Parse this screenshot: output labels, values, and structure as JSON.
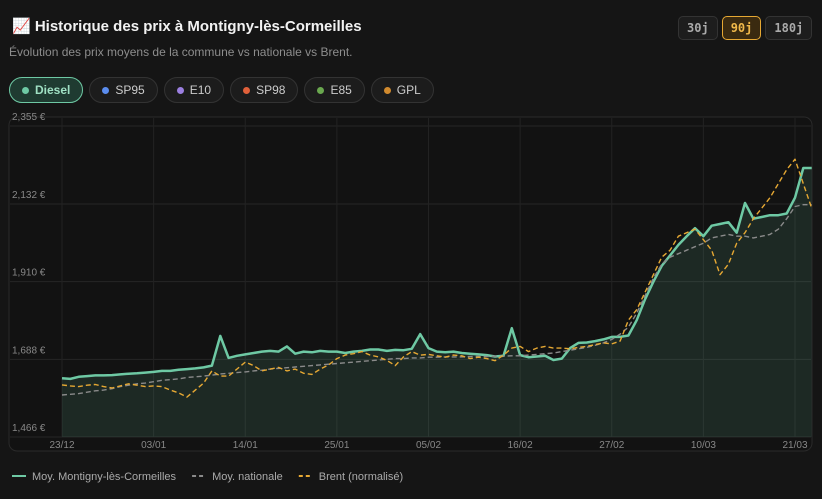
{
  "header": {
    "title": "📈 Historique des prix à Montigny-lès-Cormeilles",
    "subtitle": "Évolution des prix moyens de la commune vs nationale vs Brent."
  },
  "period_buttons": [
    {
      "label": "30j",
      "active": false
    },
    {
      "label": "90j",
      "active": true
    },
    {
      "label": "180j",
      "active": false
    }
  ],
  "fuel_tabs": [
    {
      "label": "Diesel",
      "color": "#6ec9a4",
      "active": true
    },
    {
      "label": "SP95",
      "color": "#5b8def",
      "active": false
    },
    {
      "label": "E10",
      "color": "#9b7fe0",
      "active": false
    },
    {
      "label": "SP98",
      "color": "#e0603a",
      "active": false
    },
    {
      "label": "E85",
      "color": "#6aa84f",
      "active": false
    },
    {
      "label": "GPL",
      "color": "#d08a2e",
      "active": false
    }
  ],
  "chart_data": {
    "type": "line",
    "categories": [
      "23/12",
      null,
      null,
      null,
      null,
      null,
      null,
      null,
      null,
      null,
      null,
      "03/01",
      null,
      null,
      null,
      null,
      null,
      null,
      null,
      null,
      null,
      null,
      "14/01",
      null,
      null,
      null,
      null,
      null,
      null,
      null,
      null,
      null,
      null,
      "25/01",
      null,
      null,
      null,
      null,
      null,
      null,
      null,
      null,
      null,
      null,
      "05/02",
      null,
      null,
      null,
      null,
      null,
      null,
      null,
      null,
      null,
      null,
      "16/02",
      null,
      null,
      null,
      null,
      null,
      null,
      null,
      null,
      null,
      null,
      "27/02",
      null,
      null,
      null,
      null,
      null,
      null,
      null,
      null,
      null,
      null,
      "10/03",
      null,
      null,
      null,
      null,
      null,
      null,
      null,
      null,
      null,
      null,
      "21/03",
      null,
      null
    ],
    "series": [
      {
        "name": "Moy. Montigny-lès-Cormeilles",
        "color": "#6ec9a4",
        "style": "solid",
        "fill": true,
        "values": [
          1.634,
          1.632,
          1.638,
          1.64,
          1.642,
          1.642,
          1.643,
          1.645,
          1.647,
          1.648,
          1.65,
          1.652,
          1.655,
          1.655,
          1.658,
          1.66,
          1.662,
          1.665,
          1.67,
          1.755,
          1.692,
          1.698,
          1.702,
          1.706,
          1.71,
          1.712,
          1.71,
          1.725,
          1.704,
          1.71,
          1.708,
          1.712,
          1.71,
          1.71,
          1.706,
          1.71,
          1.712,
          1.716,
          1.716,
          1.712,
          1.715,
          1.714,
          1.718,
          1.76,
          1.72,
          1.71,
          1.708,
          1.71,
          1.706,
          1.704,
          1.702,
          1.7,
          1.696,
          1.698,
          1.777,
          1.7,
          1.694,
          1.696,
          1.698,
          1.686,
          1.69,
          1.72,
          1.735,
          1.736,
          1.74,
          1.745,
          1.752,
          1.752,
          1.756,
          1.8,
          1.86,
          1.91,
          1.955,
          1.985,
          2.015,
          2.04,
          2.063,
          2.04,
          2.07,
          2.075,
          2.08,
          2.05,
          2.135,
          2.09,
          2.095,
          2.1,
          2.1,
          2.105,
          2.15,
          2.235,
          2.235
        ]
      },
      {
        "name": "Moy. nationale",
        "color": "#8a8a8a",
        "style": "dashed",
        "fill": false,
        "values": [
          1.586,
          1.588,
          1.59,
          1.594,
          1.598,
          1.6,
          1.604,
          1.61,
          1.614,
          1.618,
          1.62,
          1.624,
          1.628,
          1.63,
          1.632,
          1.636,
          1.638,
          1.64,
          1.643,
          1.646,
          1.648,
          1.65,
          1.652,
          1.655,
          1.657,
          1.66,
          1.662,
          1.664,
          1.666,
          1.668,
          1.67,
          1.672,
          1.674,
          1.676,
          1.678,
          1.68,
          1.682,
          1.684,
          1.686,
          1.688,
          1.69,
          1.69,
          1.692,
          1.692,
          1.694,
          1.694,
          1.695,
          1.695,
          1.695,
          1.696,
          1.696,
          1.696,
          1.697,
          1.697,
          1.698,
          1.698,
          1.7,
          1.702,
          1.704,
          1.706,
          1.71,
          1.714,
          1.718,
          1.722,
          1.728,
          1.735,
          1.745,
          1.76,
          1.78,
          1.82,
          1.87,
          1.92,
          1.96,
          1.98,
          1.99,
          2.0,
          2.01,
          2.02,
          2.035,
          2.04,
          2.045,
          2.04,
          2.04,
          2.035,
          2.04,
          2.045,
          2.06,
          2.09,
          2.125,
          2.13,
          2.13
        ]
      },
      {
        "name": "Brent (normalisé)",
        "color": "#e6a833",
        "style": "dashed",
        "fill": false,
        "values": [
          1.615,
          1.612,
          1.61,
          1.614,
          1.616,
          1.61,
          1.606,
          1.612,
          1.618,
          1.614,
          1.61,
          1.612,
          1.61,
          1.6,
          1.592,
          1.58,
          1.6,
          1.62,
          1.655,
          1.64,
          1.64,
          1.66,
          1.68,
          1.67,
          1.655,
          1.66,
          1.665,
          1.655,
          1.66,
          1.648,
          1.645,
          1.66,
          1.672,
          1.69,
          1.7,
          1.704,
          1.71,
          1.7,
          1.695,
          1.685,
          1.67,
          1.695,
          1.71,
          1.7,
          1.702,
          1.698,
          1.694,
          1.7,
          1.698,
          1.69,
          1.694,
          1.69,
          1.684,
          1.7,
          1.72,
          1.725,
          1.71,
          1.72,
          1.725,
          1.72,
          1.72,
          1.718,
          1.722,
          1.725,
          1.73,
          1.735,
          1.732,
          1.74,
          1.8,
          1.83,
          1.88,
          1.93,
          1.98,
          2.0,
          2.04,
          2.05,
          2.06,
          2.03,
          2.0,
          1.93,
          1.96,
          2.02,
          2.05,
          2.09,
          2.12,
          2.15,
          2.19,
          2.23,
          2.26,
          2.19,
          2.12
        ]
      }
    ],
    "ylim": [
      1.466,
      2.355
    ],
    "yticks": [
      {
        "value": 1.466,
        "label": "1,466 €"
      },
      {
        "value": 1.688,
        "label": "1,688 €"
      },
      {
        "value": 1.91,
        "label": "1,910 €"
      },
      {
        "value": 2.132,
        "label": "2,132 €"
      },
      {
        "value": 2.355,
        "label": "2,355 €"
      }
    ],
    "grid": true
  }
}
